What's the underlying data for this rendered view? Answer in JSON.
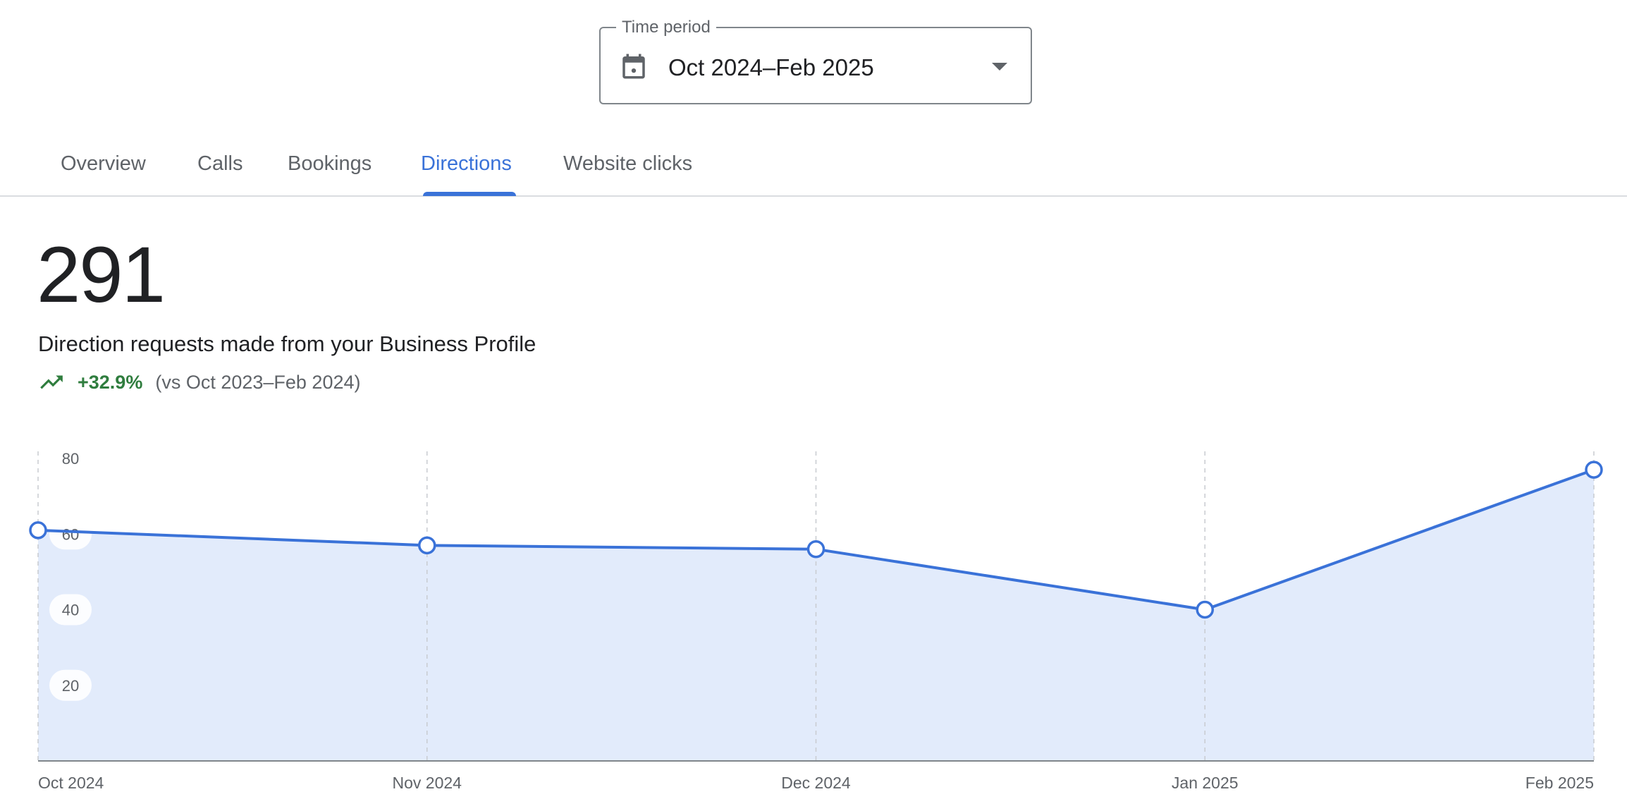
{
  "time_period": {
    "label": "Time period",
    "value": "Oct 2024–Feb 2025",
    "calendar_icon": "calendar-icon",
    "caret_icon": "arrow-drop-down-icon"
  },
  "tabs": [
    {
      "label": "Overview",
      "active": false
    },
    {
      "label": "Calls",
      "active": false
    },
    {
      "label": "Bookings",
      "active": false
    },
    {
      "label": "Directions",
      "active": true
    },
    {
      "label": "Website clicks",
      "active": false
    }
  ],
  "metric": {
    "value": "291",
    "description": "Direction requests made from your Business Profile",
    "trend_icon": "trending-up-icon",
    "change": "+32.9%",
    "comparison": "(vs Oct 2023–Feb 2024)"
  },
  "colors": {
    "accent": "#3a72d8",
    "area_fill": "#e2ebfb",
    "positive": "#2f7d3e"
  },
  "chart_data": {
    "type": "area",
    "categories": [
      "Oct 2024",
      "Nov 2024",
      "Dec 2024",
      "Jan 2025",
      "Feb 2025"
    ],
    "series": [
      {
        "values": [
          61,
          57,
          56,
          40,
          77
        ]
      }
    ],
    "y_ticks": [
      "20",
      "40",
      "60",
      "80"
    ],
    "ylim": [
      0,
      80
    ],
    "grid": "vertical dashed"
  }
}
